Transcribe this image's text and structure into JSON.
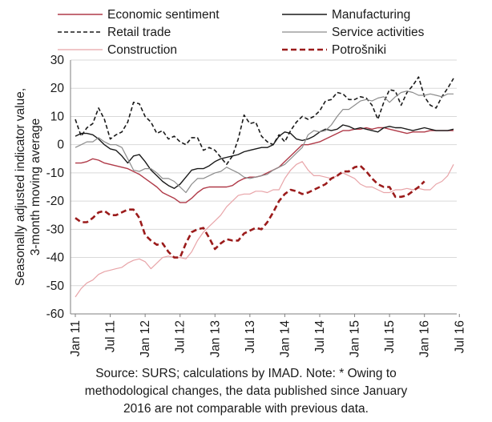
{
  "chart_data": {
    "type": "line",
    "ylabel_lines": [
      "Seasonally adjusted indicator value,",
      "3-month moving average"
    ],
    "ylim": [
      -60,
      30
    ],
    "yticks": [
      30,
      20,
      10,
      0,
      -10,
      -20,
      -30,
      -40,
      -50,
      -60
    ],
    "xtick_labels": [
      "Jan 11",
      "Jul 11",
      "Jan 12",
      "Jul 12",
      "Jan 13",
      "Jul 13",
      "Jan 14",
      "Jul 14",
      "Jan 15",
      "Jul 15",
      "Jan 16",
      "Jul 16"
    ],
    "grid": true,
    "legend_position": "top",
    "x_start": "Jan 2011",
    "x_end": "Aug 2016",
    "series": [
      {
        "name": "Economic sentiment",
        "color": "#b03a48",
        "dash": "solid",
        "values": [
          -6.5,
          -6.5,
          -6,
          -5,
          -5.5,
          -6.5,
          -7,
          -7.5,
          -8,
          -8.5,
          -9.5,
          -10.5,
          -12,
          -13.5,
          -15,
          -17,
          -18,
          -19,
          -20.5,
          -20.5,
          -19,
          -17,
          -15.5,
          -15,
          -15,
          -15,
          -15,
          -14.5,
          -13,
          -12,
          -11.5,
          -11.5,
          -11,
          -10,
          -9,
          -8,
          -6,
          -4,
          -2,
          0,
          0,
          0.5,
          1,
          2,
          3,
          4,
          5,
          5,
          5.5,
          5.5,
          6,
          5.5,
          6,
          6,
          5.5,
          5,
          4.5,
          4,
          4.5,
          4.5,
          4.5,
          5,
          5,
          5,
          5,
          5
        ]
      },
      {
        "name": "Manufacturing",
        "color": "#1a1a1a",
        "dash": "solid",
        "values": [
          3,
          4,
          4,
          3.5,
          2,
          0,
          -1.5,
          -2,
          -4,
          -6.5,
          -4,
          -3.5,
          -6,
          -9,
          -11,
          -13,
          -14.5,
          -15.5,
          -14,
          -11.5,
          -9,
          -8.5,
          -8.5,
          -7.5,
          -6,
          -5,
          -4.5,
          -4,
          -3.5,
          -2.5,
          -2,
          -1.5,
          -1,
          -1,
          0,
          3,
          4.5,
          4,
          2,
          1.5,
          2,
          3,
          4.5,
          5.5,
          5,
          5.5,
          7,
          6.5,
          5.5,
          6,
          5.5,
          5,
          4.5,
          6,
          6.5,
          6,
          6,
          5.5,
          5,
          5.5,
          6,
          5.5,
          5,
          5,
          5,
          5.5
        ]
      },
      {
        "name": "Retail trade",
        "color": "#1a1a1a",
        "dash": "dashed",
        "values": [
          9,
          3,
          6,
          7.5,
          13,
          9,
          2,
          3.5,
          4.5,
          8,
          15,
          14.5,
          10,
          8,
          4,
          5,
          2,
          3,
          1,
          0,
          2.5,
          2.5,
          -2,
          -1,
          -2,
          -4.5,
          -7,
          -4,
          2,
          10.5,
          7.5,
          8,
          3,
          1,
          0,
          3.5,
          1,
          5,
          8,
          10,
          9,
          10,
          12,
          15.5,
          16,
          18.5,
          18,
          16,
          16,
          17,
          16.5,
          14,
          9,
          15,
          19.5,
          19,
          14,
          18.5,
          21,
          24,
          17,
          14,
          13,
          17,
          20,
          23.5
        ]
      },
      {
        "name": "Service activities",
        "color": "#8c8c8c",
        "dash": "solid",
        "values": [
          -1,
          0,
          1,
          1,
          2.5,
          1,
          0,
          0,
          -1,
          -5,
          -9,
          -9.5,
          -8.5,
          -8.5,
          -10,
          -12,
          -12,
          -13,
          -15,
          -17,
          -14,
          -12,
          -12,
          -11,
          -10,
          -9.5,
          -8,
          -9,
          -10,
          -11.5,
          -12,
          -11.5,
          -11,
          -10.5,
          -9,
          -8,
          -7,
          -5,
          -3,
          -1,
          3.5,
          5,
          4.5,
          5,
          7,
          10,
          12.5,
          12.5,
          14,
          15.5,
          16,
          15.5,
          16.5,
          17,
          15,
          17,
          18.5,
          19,
          18.5,
          17.5,
          17.5,
          18,
          17.5,
          17,
          18,
          18
        ]
      },
      {
        "name": "Construction",
        "color": "#e8a4a8",
        "dash": "solid",
        "values": [
          -54,
          -51,
          -49,
          -48,
          -46,
          -45,
          -44.5,
          -44,
          -43.5,
          -42,
          -41,
          -40.5,
          -41.5,
          -44,
          -42,
          -40,
          -39.5,
          -40,
          -40,
          -40.5,
          -38,
          -34,
          -31,
          -29,
          -27,
          -25,
          -22,
          -20,
          -18,
          -17.5,
          -17.5,
          -16.5,
          -16.5,
          -17,
          -16,
          -16,
          -12,
          -9,
          -7,
          -6,
          -9,
          -11,
          -11,
          -11.5,
          -12,
          -11,
          -10,
          -11,
          -12,
          -14,
          -15,
          -15,
          -16,
          -17,
          -17,
          -16,
          -16,
          -15.5,
          -16,
          -15.5,
          -16,
          -16,
          -14,
          -13,
          -11,
          -7
        ]
      },
      {
        "name": "Potrošniki",
        "color": "#9b1b1b",
        "dash": "dashed-thick",
        "values": [
          -26,
          -27.5,
          -27.5,
          -26,
          -24,
          -23.5,
          -25,
          -25,
          -24,
          -23,
          -23,
          -26,
          -32,
          -34,
          -35.5,
          -35,
          -38,
          -40,
          -40,
          -35,
          -31,
          -30,
          -29.5,
          -33,
          -37,
          -35,
          -33.5,
          -34,
          -34,
          -31.5,
          -30.5,
          -29.5,
          -30,
          -27.5,
          -24,
          -20,
          -17.5,
          -16,
          -16.5,
          -17.5,
          -17,
          -16,
          -15,
          -14,
          -12,
          -11,
          -9.5,
          -9.5,
          -8,
          -7.5,
          -9.5,
          -12,
          -14,
          -15,
          -15,
          -18.5,
          -18.5,
          -18,
          -16.5,
          -15,
          -13
        ]
      }
    ]
  },
  "source_lines": [
    "Source: SURS; calculations by IMAD. Note: * Owing to",
    "methodological changes, the data published since January",
    "2016 are not comparable with previous data."
  ]
}
